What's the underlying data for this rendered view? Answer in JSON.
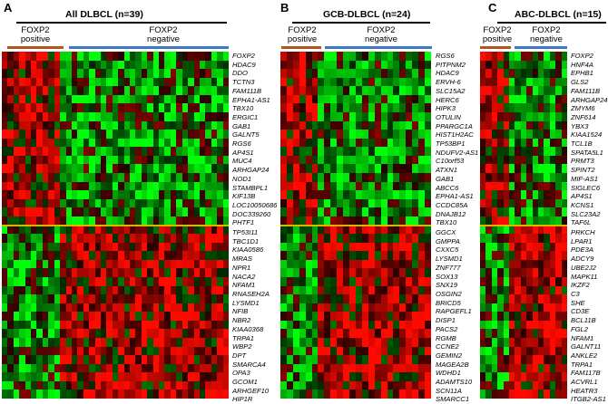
{
  "colors": {
    "positive_bar": "#b5541f",
    "negative_bar": "#3f78c4",
    "split_line": "#d9b600"
  },
  "panels": {
    "a": {
      "letter": "A",
      "title": "All DLBCL (n=39)",
      "positive_label": "FOXP2\npositive",
      "negative_label": "FOXP2\nnegative",
      "genes_up": [
        "FOXP2",
        "HDAC9",
        "DDO",
        "TCTN3",
        "FAM111B",
        "EPHA1-AS1",
        "TBX10",
        "ERGIC1",
        "GAB1",
        "GALNT5",
        "RGS6",
        "AP4S1",
        "MUC4",
        "ARHGAP24",
        "NOD1",
        "STAMBPL1",
        "KIF13B",
        "LOC10050686",
        "DOC339260",
        "PHTF1"
      ],
      "genes_down": [
        "TP53I11",
        "TBC1D1",
        "KIAA0586",
        "MRAS",
        "NPR1",
        "NACA2",
        "NFAM1",
        "RNASEH2A",
        "LYSMD1",
        "NFIB",
        "NBR2",
        "KIAA0368",
        "TRPA1",
        "WBP2",
        "DPT",
        "SMARCA4",
        "OPA3",
        "GCOM1",
        "ARHGEF10",
        "HIP1R"
      ]
    },
    "b": {
      "letter": "B",
      "title": "GCB-DLBCL (n=24)",
      "positive_label": "FOXP2\npositive",
      "negative_label": "FOXP2\nnegative",
      "genes_up": [
        "RGS6",
        "PITPNM2",
        "HDAC9",
        "ERVH-6",
        "SLC15A2",
        "HERC6",
        "HIPK3",
        "OTULIN",
        "PPARGC1A",
        "HIST1H2AC",
        "TP53BP1",
        "NDUFV2-AS1",
        "C10orf53",
        "ATXN1",
        "GAB1",
        "ABCC6",
        "EPHA1-AS1",
        "CCDC85A",
        "DNAJB12",
        "TBX10"
      ],
      "genes_down": [
        "GGCX",
        "GMPPA",
        "CXXC5",
        "LYSMD1",
        "ZNF777",
        "SOX13",
        "SNX19",
        "OSGIN2",
        "BRICD5",
        "RAPGEFL1",
        "DISP1",
        "PACS2",
        "RGMB",
        "CCNE2",
        "GEMIN2",
        "MAGEA2B",
        "WDHD1",
        "ADAMTS10",
        "SCN11A",
        "SMARCC1"
      ]
    },
    "c": {
      "letter": "C",
      "title": "ABC-DLBCL (n=15)",
      "positive_label": "FOXP2\npositive",
      "negative_label": "FOXP2\nnegative",
      "genes_up": [
        "FOXP2",
        "HNF4A",
        "EPHB1",
        "GLS2",
        "FAM111B",
        "ARHGAP24",
        "ZMYM6",
        "ZNF614",
        "YBX3",
        "KIAA1524",
        "TCL1B",
        "SPATA5L1",
        "PRMT3",
        "SPINT2",
        "MIF-AS1",
        "SIGLEC6",
        "AP4S1",
        "KCNS1",
        "SLC23A2",
        "TAF6L"
      ],
      "genes_down": [
        "PRKCH",
        "LPAR1",
        "PDE3A",
        "ADCY9",
        "UBE2J2",
        "MAPK11",
        "IKZF2",
        "C3",
        "SHE",
        "CD3E",
        "BCL11B",
        "FGL2",
        "NFAM1",
        "GALNT11",
        "ANKLE2",
        "TRPA1",
        "FAM117B",
        "ACVRL1",
        "HEATR3",
        "ITGB2-AS1"
      ]
    }
  }
}
